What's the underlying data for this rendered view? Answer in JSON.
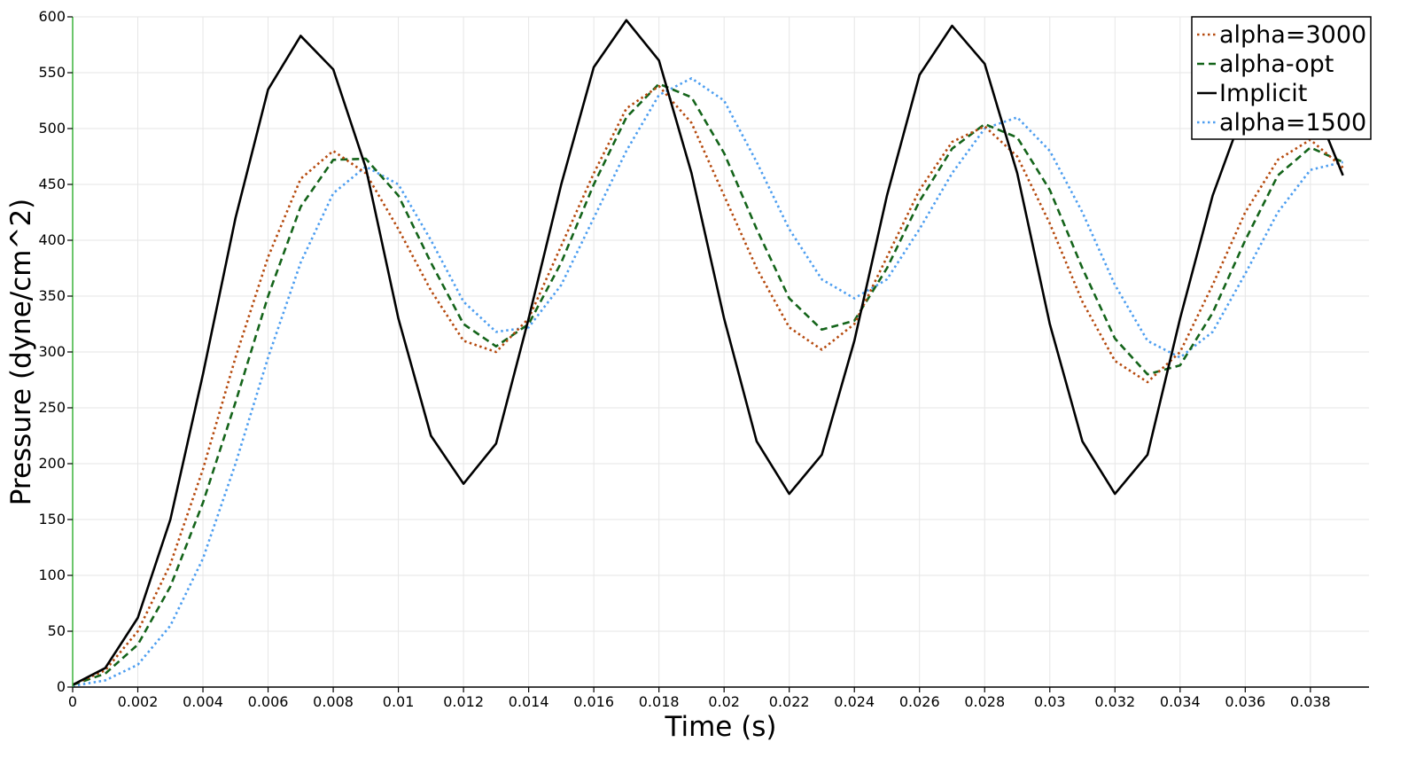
{
  "chart_data": {
    "type": "line",
    "title": "",
    "xlabel": "Time (s)",
    "ylabel": "Pressure (dyne/cm^2)",
    "xlim": [
      0,
      0.0398
    ],
    "ylim": [
      0,
      600
    ],
    "grid": true,
    "legend_position": "top-right",
    "x_ticks": [
      0,
      0.002,
      0.004,
      0.006,
      0.008,
      0.01,
      0.012,
      0.014,
      0.016,
      0.018,
      0.02,
      0.022,
      0.024,
      0.026,
      0.028,
      0.03,
      0.032,
      0.034,
      0.036,
      0.038
    ],
    "x_tick_labels": [
      "0",
      "0.002",
      "0.004",
      "0.006",
      "0.008",
      "0.01",
      "0.012",
      "0.014",
      "0.016",
      "0.018",
      "0.02",
      "0.022",
      "0.024",
      "0.026",
      "0.028",
      "0.03",
      "0.032",
      "0.034",
      "0.036",
      "0.038"
    ],
    "y_ticks": [
      0,
      50,
      100,
      150,
      200,
      250,
      300,
      350,
      400,
      450,
      500,
      550,
      600
    ],
    "y_tick_labels": [
      "0",
      "50",
      "100",
      "150",
      "200",
      "250",
      "300",
      "350",
      "400",
      "450",
      "500",
      "550",
      "600"
    ],
    "x": [
      0,
      0.001,
      0.002,
      0.003,
      0.004,
      0.005,
      0.006,
      0.007,
      0.008,
      0.009,
      0.01,
      0.011,
      0.012,
      0.013,
      0.014,
      0.015,
      0.016,
      0.017,
      0.018,
      0.019,
      0.02,
      0.021,
      0.022,
      0.023,
      0.024,
      0.025,
      0.026,
      0.027,
      0.028,
      0.029,
      0.03,
      0.031,
      0.032,
      0.033,
      0.034,
      0.035,
      0.036,
      0.037,
      0.038,
      0.039
    ],
    "series": [
      {
        "name": "alpha=3000",
        "color": "#b5490d",
        "dash": "dotted",
        "values": [
          2,
          15,
          50,
          110,
          195,
          295,
          385,
          455,
          480,
          460,
          410,
          355,
          310,
          300,
          330,
          395,
          460,
          518,
          538,
          505,
          440,
          375,
          322,
          302,
          325,
          385,
          445,
          488,
          502,
          475,
          415,
          345,
          292,
          273,
          300,
          360,
          425,
          472,
          490,
          465
        ]
      },
      {
        "name": "alpha-opt",
        "color": "#14641a",
        "dash": "dashed",
        "values": [
          2,
          12,
          38,
          90,
          165,
          255,
          350,
          430,
          472,
          473,
          440,
          380,
          325,
          305,
          325,
          380,
          450,
          510,
          540,
          528,
          478,
          410,
          348,
          320,
          328,
          375,
          435,
          482,
          504,
          492,
          445,
          375,
          312,
          280,
          288,
          335,
          400,
          458,
          483,
          470
        ]
      },
      {
        "name": "Implicit",
        "color": "#000000",
        "dash": "solid",
        "values": [
          2,
          17,
          62,
          150,
          280,
          420,
          535,
          583,
          553,
          465,
          330,
          225,
          182,
          218,
          330,
          450,
          555,
          597,
          561,
          460,
          330,
          220,
          173,
          208,
          310,
          440,
          548,
          592,
          558,
          460,
          325,
          220,
          173,
          208,
          330,
          440,
          520,
          555,
          530,
          458
        ]
      },
      {
        "name": "alpha=1500",
        "color": "#4d9ef0",
        "dash": "dotted",
        "values": [
          1,
          6,
          20,
          55,
          115,
          200,
          295,
          380,
          442,
          466,
          450,
          400,
          345,
          318,
          322,
          360,
          420,
          480,
          530,
          545,
          525,
          470,
          410,
          365,
          348,
          365,
          410,
          460,
          500,
          510,
          480,
          425,
          360,
          310,
          295,
          318,
          370,
          425,
          463,
          470
        ]
      }
    ]
  }
}
